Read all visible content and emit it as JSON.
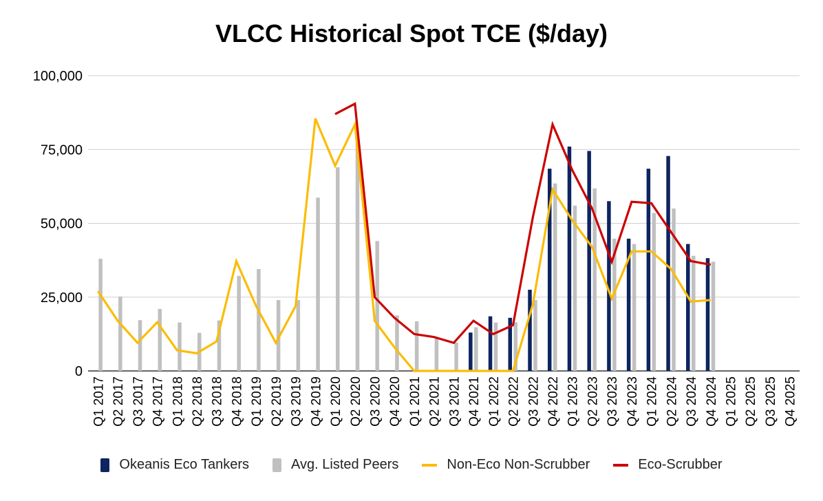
{
  "chart_data": {
    "type": "bar",
    "title": "VLCC Historical Spot TCE ($/day)",
    "categories": [
      "Q1 2017",
      "Q2 2017",
      "Q3 2017",
      "Q4 2017",
      "Q1 2018",
      "Q2 2018",
      "Q3 2018",
      "Q4 2018",
      "Q1 2019",
      "Q2 2019",
      "Q3 2019",
      "Q4 2019",
      "Q1 2020",
      "Q2 2020",
      "Q3 2020",
      "Q4 2020",
      "Q1 2021",
      "Q2 2021",
      "Q3 2021",
      "Q4 2021",
      "Q1 2022",
      "Q2 2022",
      "Q3 2022",
      "Q4 2022",
      "Q1 2023",
      "Q2 2023",
      "Q3 2023",
      "Q4 2023",
      "Q1 2024",
      "Q2 2024",
      "Q3 2024",
      "Q4 2024",
      "Q1 2025",
      "Q2 2025",
      "Q3 2025",
      "Q4 2025"
    ],
    "ylim": [
      0,
      100000
    ],
    "yticks": [
      0,
      25000,
      50000,
      75000,
      100000
    ],
    "ytick_labels": [
      "0",
      "25,000",
      "50,000",
      "75,000",
      "100,000"
    ],
    "grid": true,
    "legend_position": "bottom",
    "series": [
      {
        "name": "Okeanis Eco Tankers",
        "kind": "bar",
        "color": "#0d2460",
        "values": [
          null,
          null,
          null,
          null,
          null,
          null,
          null,
          null,
          null,
          null,
          null,
          null,
          null,
          null,
          null,
          null,
          null,
          null,
          null,
          13000,
          18500,
          18000,
          27500,
          68500,
          76000,
          74500,
          57500,
          44800,
          68500,
          72800,
          43000,
          38200,
          null,
          null,
          null,
          null
        ]
      },
      {
        "name": "Avg. Listed Peers",
        "kind": "bar",
        "color": "#c0c0c0",
        "values": [
          38000,
          25200,
          17200,
          21000,
          16400,
          12900,
          17100,
          32200,
          34500,
          24000,
          24000,
          58700,
          69000,
          79000,
          44000,
          18800,
          16800,
          11400,
          9600,
          14800,
          16400,
          16500,
          24000,
          63500,
          56000,
          61800,
          44800,
          43000,
          53500,
          55000,
          39000,
          37000,
          null,
          null,
          null,
          null
        ]
      },
      {
        "name": "Non-Eco Non-Scrubber",
        "kind": "line",
        "color": "#fbbc04",
        "values": [
          27000,
          17000,
          9500,
          16500,
          7000,
          6000,
          10000,
          37200,
          22000,
          9500,
          22000,
          85500,
          69500,
          83500,
          17000,
          8000,
          0,
          0,
          0,
          0,
          0,
          0,
          22500,
          61500,
          51000,
          42000,
          24500,
          40500,
          40500,
          34500,
          23500,
          24000,
          null,
          null,
          null,
          null
        ]
      },
      {
        "name": "Eco-Scrubber",
        "kind": "line",
        "color": "#cc0000",
        "values": [
          null,
          null,
          null,
          null,
          null,
          null,
          null,
          null,
          null,
          null,
          null,
          null,
          87000,
          90500,
          25000,
          18000,
          12500,
          11500,
          9500,
          17000,
          12500,
          15500,
          52000,
          83500,
          68000,
          55000,
          37000,
          57300,
          56800,
          47000,
          37200,
          36000,
          null,
          null,
          null,
          null
        ]
      }
    ]
  }
}
